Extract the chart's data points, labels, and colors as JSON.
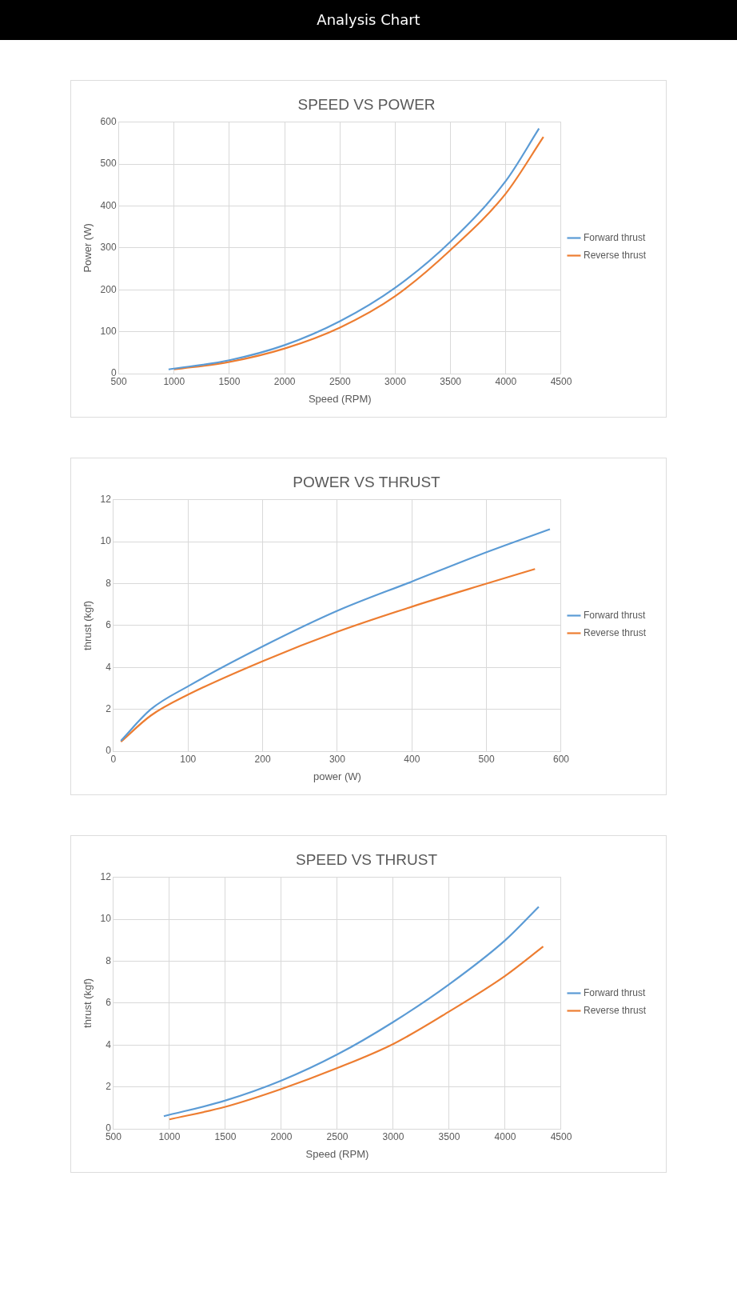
{
  "chart_data": [
    {
      "type": "line",
      "title": "SPEED VS POWER",
      "xlabel": "Speed (RPM)",
      "ylabel": "Power (W)",
      "annotations": [
        "Analysis Chart"
      ],
      "xlim": [
        500,
        4500
      ],
      "xticks": [
        500,
        1000,
        1500,
        2000,
        2500,
        3000,
        3500,
        4000,
        4500
      ],
      "ylim": [
        0,
        600
      ],
      "yticks": [
        0,
        100,
        200,
        300,
        400,
        500,
        600
      ],
      "grid": true,
      "legend": "right",
      "marker": "none",
      "line_style": "solid",
      "series": [
        {
          "name": "Forward thrust",
          "color": "#5b9bd5",
          "x": [
            950,
            1500,
            2000,
            2500,
            3000,
            3500,
            4000,
            4300
          ],
          "values": [
            10,
            32,
            68,
            125,
            205,
            315,
            460,
            585
          ]
        },
        {
          "name": "Reverse thrust",
          "color": "#ed7d31",
          "x": [
            1000,
            1500,
            2000,
            2500,
            3000,
            3500,
            4000,
            4340
          ],
          "values": [
            10,
            28,
            60,
            110,
            185,
            295,
            430,
            565
          ]
        }
      ]
    },
    {
      "type": "line",
      "title": "POWER VS THRUST",
      "xlabel": "power (W)",
      "ylabel": "thrust (kgf)",
      "xlim": [
        0,
        600
      ],
      "xticks": [
        0,
        100,
        200,
        300,
        400,
        500,
        600
      ],
      "ylim": [
        0,
        12
      ],
      "yticks": [
        0,
        2,
        4,
        6,
        8,
        10,
        12
      ],
      "grid": true,
      "legend": "right",
      "marker": "none",
      "line_style": "solid",
      "series": [
        {
          "name": "Forward thrust",
          "color": "#5b9bd5",
          "x": [
            10,
            50,
            100,
            200,
            300,
            400,
            500,
            585
          ],
          "values": [
            0.5,
            2.0,
            3.1,
            5.0,
            6.7,
            8.1,
            9.5,
            10.6
          ]
        },
        {
          "name": "Reverse thrust",
          "color": "#ed7d31",
          "x": [
            10,
            50,
            100,
            200,
            300,
            400,
            500,
            565
          ],
          "values": [
            0.45,
            1.7,
            2.7,
            4.3,
            5.7,
            6.9,
            8.0,
            8.7
          ]
        }
      ]
    },
    {
      "type": "line",
      "title": "SPEED VS THRUST",
      "xlabel": "Speed (RPM)",
      "ylabel": "thrust (kgf)",
      "xlim": [
        500,
        4500
      ],
      "xticks": [
        500,
        1000,
        1500,
        2000,
        2500,
        3000,
        3500,
        4000,
        4500
      ],
      "ylim": [
        0,
        12
      ],
      "yticks": [
        0,
        2,
        4,
        6,
        8,
        10,
        12
      ],
      "grid": true,
      "legend": "right",
      "marker": "none",
      "line_style": "solid",
      "series": [
        {
          "name": "Forward thrust",
          "color": "#5b9bd5",
          "x": [
            950,
            1500,
            2000,
            2500,
            3000,
            3500,
            4000,
            4300
          ],
          "values": [
            0.6,
            1.35,
            2.3,
            3.55,
            5.1,
            6.9,
            9.0,
            10.6
          ]
        },
        {
          "name": "Reverse thrust",
          "color": "#ed7d31",
          "x": [
            1000,
            1500,
            2000,
            2500,
            3000,
            3500,
            4000,
            4340
          ],
          "values": [
            0.45,
            1.05,
            1.9,
            2.9,
            4.05,
            5.6,
            7.3,
            8.7
          ]
        }
      ]
    }
  ]
}
